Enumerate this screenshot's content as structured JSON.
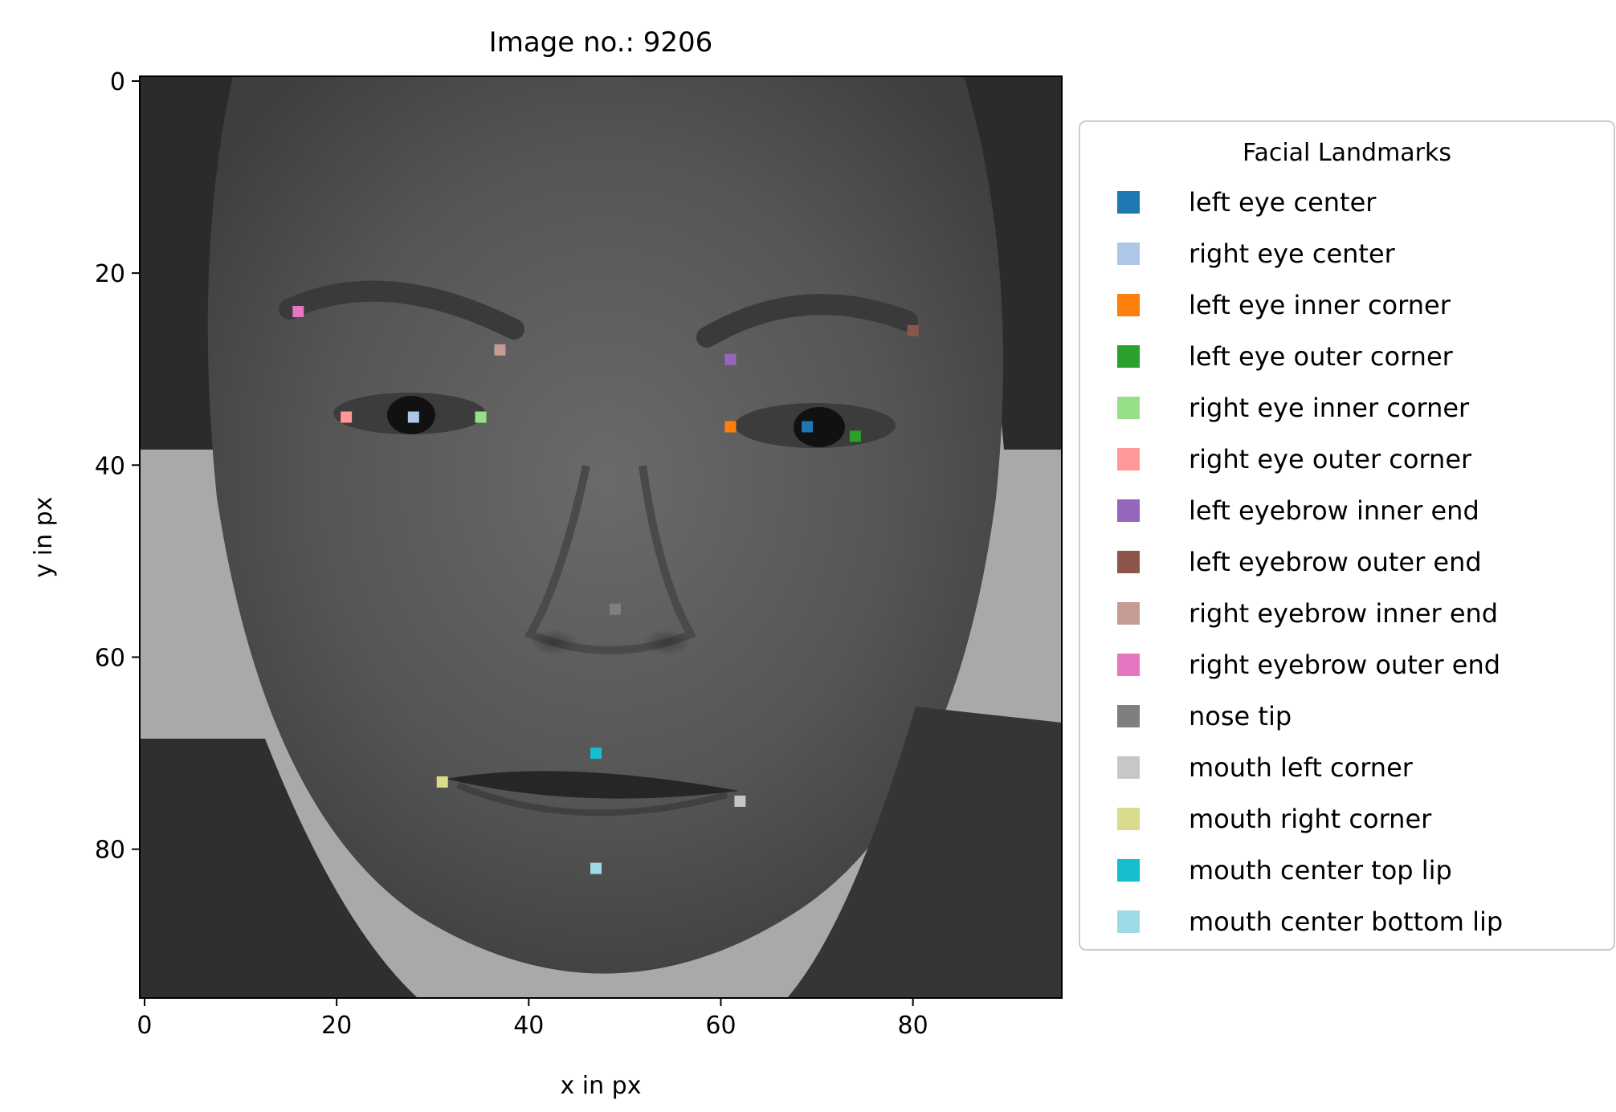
{
  "chart_data": {
    "type": "scatter",
    "title": "Image no.: 9206",
    "xlabel": "x in px",
    "ylabel": "y in px",
    "xlim": [
      -0.5,
      95.5
    ],
    "ylim": [
      95.5,
      -0.5
    ],
    "y_inverted": true,
    "xticks": [
      0,
      20,
      40,
      60,
      80
    ],
    "yticks": [
      0,
      20,
      40,
      60,
      80
    ],
    "grid": false,
    "background": "grayscale face photograph (96x96 px)",
    "legend": {
      "title": "Facial Landmarks",
      "placement": "outside-right"
    },
    "series": [
      {
        "name": "left eye center",
        "color": "#1f77b4",
        "x": 69,
        "y": 36
      },
      {
        "name": "right eye center",
        "color": "#aec7e8",
        "x": 28,
        "y": 35
      },
      {
        "name": "left eye inner corner",
        "color": "#ff7f0e",
        "x": 61,
        "y": 36
      },
      {
        "name": "left eye outer corner",
        "color": "#2ca02c",
        "x": 74,
        "y": 37
      },
      {
        "name": "right eye inner corner",
        "color": "#98df8a",
        "x": 35,
        "y": 35
      },
      {
        "name": "right eye outer corner",
        "color": "#ff9896",
        "x": 21,
        "y": 35
      },
      {
        "name": "left eyebrow inner end",
        "color": "#9467bd",
        "x": 61,
        "y": 29
      },
      {
        "name": "left eyebrow outer end",
        "color": "#8c564b",
        "x": 80,
        "y": 26
      },
      {
        "name": "right eyebrow inner end",
        "color": "#c49c94",
        "x": 37,
        "y": 28
      },
      {
        "name": "right eyebrow outer end",
        "color": "#e377c2",
        "x": 16,
        "y": 24
      },
      {
        "name": "nose tip",
        "color": "#7f7f7f",
        "x": 49,
        "y": 55
      },
      {
        "name": "mouth left corner",
        "color": "#c7c7c7",
        "x": 62,
        "y": 75
      },
      {
        "name": "mouth right corner",
        "color": "#dbdb8d",
        "x": 31,
        "y": 73
      },
      {
        "name": "mouth center top lip",
        "color": "#17becf",
        "x": 47,
        "y": 70
      },
      {
        "name": "mouth center bottom lip",
        "color": "#9edae5",
        "x": 47,
        "y": 82
      }
    ]
  }
}
